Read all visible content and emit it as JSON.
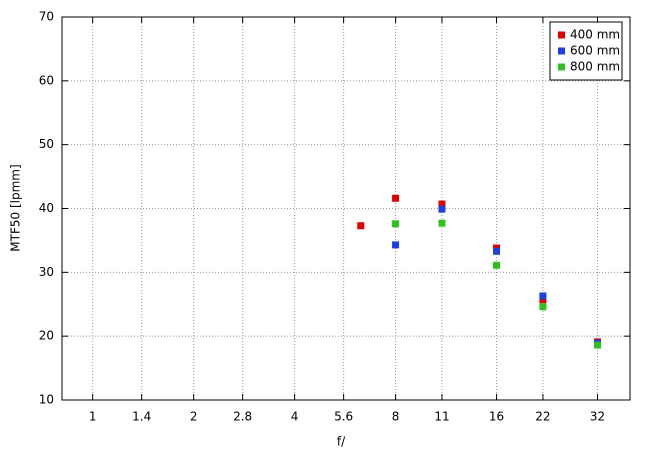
{
  "chart_data": {
    "type": "scatter",
    "x_label": "f/",
    "y_label": "MTF50 [lpmm]",
    "xscale": "log",
    "xlim": [
      0.81,
      40
    ],
    "xticks": [
      1,
      1.4,
      2,
      2.8,
      4,
      5.6,
      8,
      11,
      16,
      22,
      32
    ],
    "ylim": [
      10,
      70
    ],
    "yticks": [
      10,
      20,
      30,
      40,
      50,
      60,
      70
    ],
    "grid": true,
    "legend": "upper right",
    "series": [
      {
        "name": "400 mm",
        "color": "#e00000",
        "x": [
          6.3,
          8,
          11,
          16,
          22,
          32
        ],
        "values": [
          37.3,
          41.6,
          40.7,
          33.8,
          25.7,
          19.1
        ]
      },
      {
        "name": "600 mm",
        "color": "#1f3fe0",
        "x": [
          8,
          11,
          16,
          22,
          32
        ],
        "values": [
          34.3,
          39.9,
          33.3,
          26.3,
          18.9
        ]
      },
      {
        "name": "800 mm",
        "color": "#30c020",
        "x": [
          8,
          11,
          16,
          22,
          32
        ],
        "values": [
          37.6,
          37.7,
          31.1,
          24.6,
          18.6
        ]
      }
    ]
  }
}
